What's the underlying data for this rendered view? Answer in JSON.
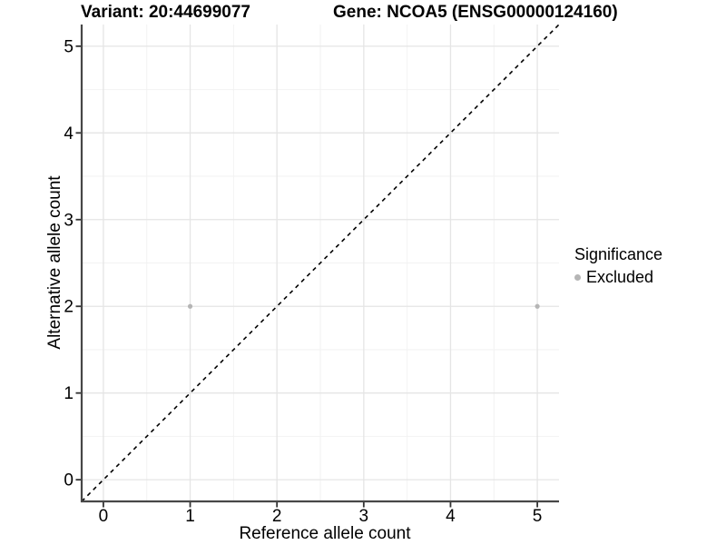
{
  "header": {
    "variant_title": "Variant: 20:44699077",
    "gene_title": "Gene: NCOA5 (ENSG00000124160)"
  },
  "chart_data": {
    "type": "scatter",
    "title_left": "Variant: 20:44699077",
    "title_right": "Gene: NCOA5 (ENSG00000124160)",
    "xlabel": "Reference allele count",
    "ylabel": "Alternative allele count",
    "xlim": [
      -0.25,
      5.25
    ],
    "ylim": [
      -0.25,
      5.25
    ],
    "xticks": [
      0,
      1,
      2,
      3,
      4,
      5
    ],
    "yticks": [
      0,
      1,
      2,
      3,
      4,
      5
    ],
    "grid": {
      "major": true,
      "minor": true,
      "major_color": "#e5e5e5",
      "minor_color": "#f2f2f2"
    },
    "axis_line_color": "#474747",
    "tick_color": "#333333",
    "identity_line": {
      "style": "dashed",
      "color": "#000000",
      "from": -0.25,
      "to": 5.25
    },
    "series": [
      {
        "name": "Excluded",
        "color": "#b5b5b5",
        "points": [
          [
            1,
            2
          ],
          [
            5,
            2
          ]
        ]
      }
    ],
    "legend": {
      "title": "Significance",
      "position": "right",
      "items": [
        {
          "label": "Excluded",
          "color": "#b5b5b5"
        }
      ]
    }
  }
}
